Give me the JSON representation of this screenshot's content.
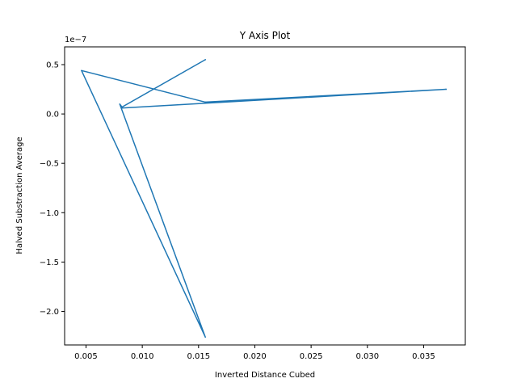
{
  "chart_data": {
    "type": "line",
    "title": "Y Axis Plot",
    "xlabel": "Inverted Distance Cubed",
    "ylabel": "Halved Substraction Average",
    "y_offset_text": "1e−7",
    "xlim": [
      0.0031,
      0.0387
    ],
    "ylim": [
      -2.34e-07,
      6.8e-08
    ],
    "xticks": [
      0.005,
      0.01,
      0.015,
      0.02,
      0.025,
      0.03,
      0.035
    ],
    "xtick_labels": [
      "0.005",
      "0.010",
      "0.015",
      "0.020",
      "0.025",
      "0.030",
      "0.035"
    ],
    "yticks": [
      5e-08,
      0.0,
      -5e-08,
      -1e-07,
      -1.5e-07,
      -2e-07
    ],
    "ytick_labels": [
      "0.5",
      "0.0",
      "−0.5",
      "−1.0",
      "−1.5",
      "−2.0"
    ],
    "grid": false,
    "series": [
      {
        "color": "#1f77b4",
        "x": [
          0.0156,
          0.0082,
          0.008,
          0.0156,
          0.0046,
          0.0156,
          0.037,
          0.0082
        ],
        "y": [
          5.5e-08,
          7e-09,
          1e-08,
          -2.26e-07,
          4.4e-08,
          1.2e-08,
          2.5e-08,
          6e-09
        ]
      }
    ]
  }
}
